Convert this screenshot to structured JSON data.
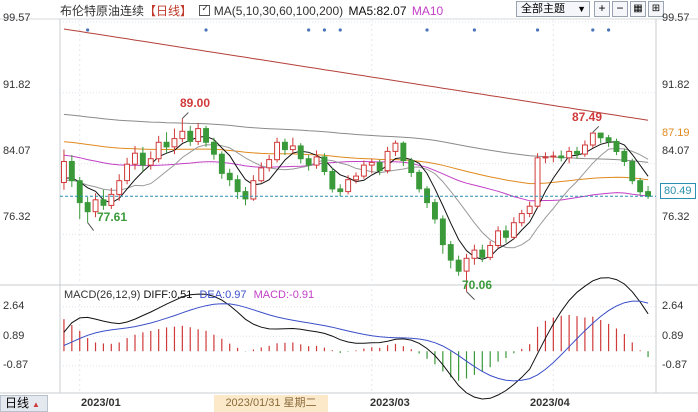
{
  "header": {
    "title": "布伦特原油连续",
    "period": "【日线】",
    "ma_label": "MA(5,10,30,60,100,200)",
    "ma5_label": "MA5:82.07",
    "ma10_label": "MA10"
  },
  "toolbar": {
    "theme_button": "全部主题"
  },
  "macd_header": {
    "name": "MACD(26,12,9)",
    "diff": "DIFF:0.51",
    "dea": "DEA:0.97",
    "macd": "MACD:-0.91"
  },
  "price_axis": {
    "ticks": [
      "99.57",
      "91.82",
      "84.07",
      "76.32"
    ]
  },
  "right_labels": {
    "ma_value": "87.19",
    "last_price": "80.49"
  },
  "macd_axis": {
    "ticks": [
      "2.64",
      "0.89",
      "-0.87"
    ]
  },
  "annotations": {
    "high1": "89.00",
    "low1": "77.61",
    "low2": "70.06",
    "high2": "87.49"
  },
  "x_axis": {
    "labels": [
      "2023/01",
      "2023/03",
      "2023/04"
    ],
    "cursor_date": "2023/01/31 星期二"
  },
  "bottom_bar": {
    "left_label": "日线"
  },
  "colors": {
    "up": "#d03a3a",
    "down": "#3a9a3a",
    "ma5": "#111111",
    "ma10": "#c23fc6",
    "ma30": "#e08a1e",
    "ma60": "#999999",
    "ma100": "#8a8a8a",
    "ma200": "#b5403a"
  },
  "chart_data": {
    "type": "candlestick",
    "ylim": [
      71.0,
      100.0
    ],
    "candles": [
      [
        82.0,
        84.3,
        85.6,
        81.2
      ],
      [
        84.3,
        82.2,
        85.0,
        81.5
      ],
      [
        82.2,
        79.8,
        82.6,
        78.0
      ],
      [
        79.8,
        78.8,
        80.4,
        77.61
      ],
      [
        78.8,
        80.1,
        80.8,
        78.2
      ],
      [
        80.1,
        79.5,
        81.2,
        79.0
      ],
      [
        79.5,
        80.7,
        81.4,
        79.1
      ],
      [
        80.7,
        82.2,
        82.9,
        80.0
      ],
      [
        82.2,
        84.0,
        84.7,
        81.8
      ],
      [
        84.0,
        85.2,
        86.0,
        83.4
      ],
      [
        85.2,
        83.9,
        85.9,
        83.2
      ],
      [
        83.9,
        84.6,
        85.4,
        83.4
      ],
      [
        84.6,
        86.4,
        87.1,
        84.2
      ],
      [
        86.4,
        85.9,
        87.5,
        85.2
      ],
      [
        85.9,
        86.8,
        87.9,
        85.1
      ],
      [
        86.8,
        87.6,
        89.0,
        86.4
      ],
      [
        87.6,
        86.5,
        88.2,
        86.0
      ],
      [
        86.5,
        87.9,
        88.5,
        86.1
      ],
      [
        87.9,
        86.4,
        88.2,
        85.9
      ],
      [
        86.4,
        85.1,
        86.9,
        84.5
      ],
      [
        85.1,
        83.0,
        85.4,
        82.4
      ],
      [
        83.0,
        82.3,
        83.5,
        81.6
      ],
      [
        82.3,
        81.0,
        82.8,
        80.2
      ],
      [
        81.0,
        80.2,
        81.5,
        79.5
      ],
      [
        80.2,
        82.2,
        82.8,
        80.0
      ],
      [
        82.2,
        83.6,
        84.2,
        82.0
      ],
      [
        83.6,
        84.5,
        85.0,
        83.2
      ],
      [
        84.5,
        86.4,
        86.9,
        84.2
      ],
      [
        86.4,
        85.6,
        86.8,
        85.0
      ],
      [
        85.6,
        86.0,
        86.9,
        85.2
      ],
      [
        86.0,
        84.6,
        86.3,
        84.1
      ],
      [
        84.6,
        83.9,
        85.0,
        83.3
      ],
      [
        83.9,
        84.8,
        85.5,
        83.5
      ],
      [
        84.8,
        83.2,
        85.2,
        82.8
      ],
      [
        83.2,
        81.3,
        83.6,
        80.9
      ],
      [
        81.3,
        81.0,
        81.8,
        80.5
      ],
      [
        81.0,
        82.3,
        82.8,
        80.7
      ],
      [
        82.3,
        82.7,
        83.1,
        81.9
      ],
      [
        82.7,
        83.9,
        84.4,
        82.4
      ],
      [
        83.9,
        84.2,
        84.6,
        83.0
      ],
      [
        84.2,
        83.3,
        84.5,
        82.8
      ],
      [
        83.3,
        85.4,
        85.9,
        83.0
      ],
      [
        85.4,
        86.3,
        86.6,
        84.9
      ],
      [
        86.3,
        84.4,
        86.5,
        83.8
      ],
      [
        84.4,
        83.1,
        84.7,
        82.6
      ],
      [
        83.1,
        81.3,
        83.4,
        80.9
      ],
      [
        81.3,
        79.8,
        81.6,
        79.2
      ],
      [
        79.8,
        78.0,
        80.2,
        77.5
      ],
      [
        78.0,
        75.2,
        78.4,
        74.2
      ],
      [
        75.2,
        73.5,
        75.6,
        72.6
      ],
      [
        73.5,
        72.3,
        74.0,
        71.8
      ],
      [
        72.3,
        73.7,
        74.2,
        70.06
      ],
      [
        73.7,
        74.6,
        75.2,
        73.0
      ],
      [
        74.6,
        73.8,
        75.2,
        73.3
      ],
      [
        73.8,
        75.1,
        75.6,
        73.5
      ],
      [
        75.1,
        76.7,
        77.2,
        74.8
      ],
      [
        76.7,
        76.0,
        77.3,
        75.4
      ],
      [
        76.0,
        77.6,
        78.2,
        75.8
      ],
      [
        77.6,
        78.6,
        79.0,
        77.2
      ],
      [
        78.6,
        79.4,
        79.9,
        78.2
      ],
      [
        79.4,
        84.7,
        85.2,
        79.2
      ],
      [
        84.7,
        84.8,
        85.3,
        84.1
      ],
      [
        84.8,
        84.9,
        85.4,
        84.2
      ],
      [
        84.9,
        84.7,
        85.5,
        84.3
      ],
      [
        84.7,
        85.4,
        85.9,
        84.1
      ],
      [
        85.4,
        85.1,
        85.9,
        84.6
      ],
      [
        85.1,
        86.1,
        86.6,
        84.8
      ],
      [
        86.1,
        87.4,
        87.49,
        85.8
      ],
      [
        87.4,
        86.9,
        87.4,
        86.3
      ],
      [
        86.9,
        86.5,
        87.2,
        85.9
      ],
      [
        86.5,
        85.4,
        86.8,
        85.0
      ],
      [
        85.4,
        84.3,
        85.7,
        83.8
      ],
      [
        84.3,
        82.2,
        84.6,
        81.8
      ],
      [
        82.2,
        81.0,
        82.5,
        80.6
      ],
      [
        81.0,
        80.49,
        81.6,
        80.2
      ]
    ],
    "last_price": 80.49,
    "highs_marked": [
      89.0,
      87.49
    ],
    "lows_marked": [
      77.61,
      70.06
    ],
    "macd": {
      "ylim": [
        -2.3,
        2.8
      ],
      "bars": [
        1.9,
        1.55,
        1.2,
        0.78,
        0.52,
        0.46,
        0.44,
        0.52,
        0.78,
        0.98,
        1.12,
        1.2,
        1.31,
        1.41,
        1.46,
        1.51,
        1.42,
        1.3,
        1.21,
        0.98,
        0.74,
        0.45,
        0.2,
        -0.02,
        0.1,
        0.22,
        0.32,
        0.47,
        0.5,
        0.52,
        0.41,
        0.3,
        0.32,
        0.21,
        0.06,
        -0.1,
        -0.03,
        0.05,
        0.16,
        0.24,
        0.2,
        0.36,
        0.44,
        0.3,
        0.12,
        -0.14,
        -0.45,
        -0.78,
        -1.2,
        -1.55,
        -1.75,
        -1.62,
        -1.4,
        -1.22,
        -0.95,
        -0.62,
        -0.4,
        -0.12,
        0.14,
        0.42,
        1.45,
        1.8,
        2.0,
        2.1,
        2.15,
        2.08,
        2.0,
        2.05,
        1.85,
        1.62,
        1.35,
        1.02,
        0.52,
        0.05,
        -0.35
      ]
    }
  }
}
